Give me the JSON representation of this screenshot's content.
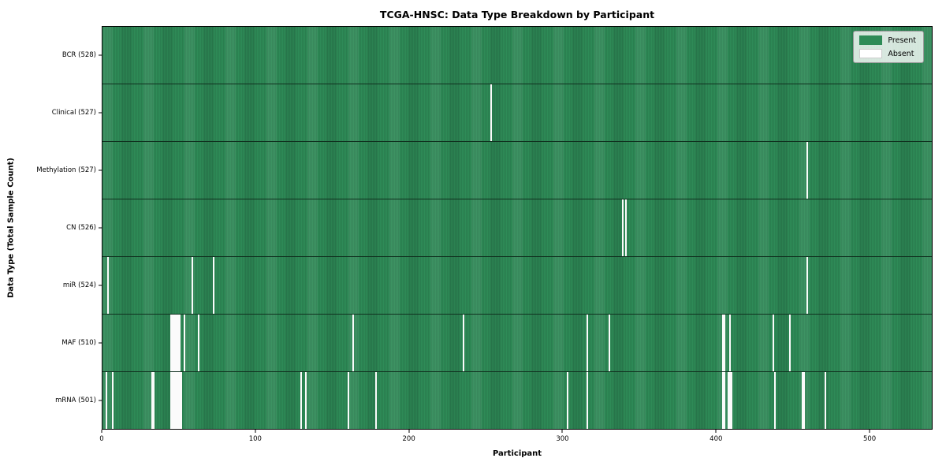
{
  "title": "TCGA-HNSC: Data Type Breakdown by Participant",
  "chart_data": {
    "type": "heatmap",
    "title": "TCGA-HNSC: Data Type Breakdown by Participant",
    "xlabel": "Participant",
    "ylabel": "Data Type (Total Sample Count)",
    "x_ticks": [
      0,
      100,
      200,
      300,
      400,
      500
    ],
    "xlim": [
      0,
      541
    ],
    "n_participants": 528,
    "grid": false,
    "legend_position": "upper-right",
    "legend": [
      {
        "label": "Present",
        "color": "#2e8b57"
      },
      {
        "label": "Absent",
        "color": "#ffffff"
      }
    ],
    "colors": {
      "present": "#2e8b57",
      "present_edge": "#1b5134",
      "absent": "#fbfbfb"
    },
    "rows": [
      {
        "name": "bcr",
        "label": "BCR (528)",
        "total": 528,
        "absent_participants": []
      },
      {
        "name": "clinical",
        "label": "Clinical (527)",
        "total": 527,
        "absent_participants": [
          253
        ]
      },
      {
        "name": "methylation",
        "label": "Methylation (527)",
        "total": 527,
        "absent_participants": [
          459
        ]
      },
      {
        "name": "cn",
        "label": "CN (526)",
        "total": 526,
        "absent_participants": [
          339,
          341
        ]
      },
      {
        "name": "mir",
        "label": "miR (524)",
        "total": 524,
        "absent_participants": [
          3,
          58,
          72,
          459
        ]
      },
      {
        "name": "maf",
        "label": "MAF (510)",
        "total": 510,
        "absent_participants": [
          44,
          45,
          46,
          47,
          48,
          49,
          50,
          53,
          62,
          163,
          235,
          316,
          330,
          404,
          405,
          409,
          437,
          448
        ]
      },
      {
        "name": "mrna",
        "label": "mRNA (501)",
        "total": 501,
        "absent_participants": [
          2,
          6,
          32,
          33,
          44,
          45,
          46,
          47,
          48,
          49,
          50,
          51,
          129,
          132,
          160,
          178,
          303,
          316,
          404,
          405,
          408,
          409,
          410,
          438,
          456,
          457,
          471
        ]
      }
    ]
  }
}
